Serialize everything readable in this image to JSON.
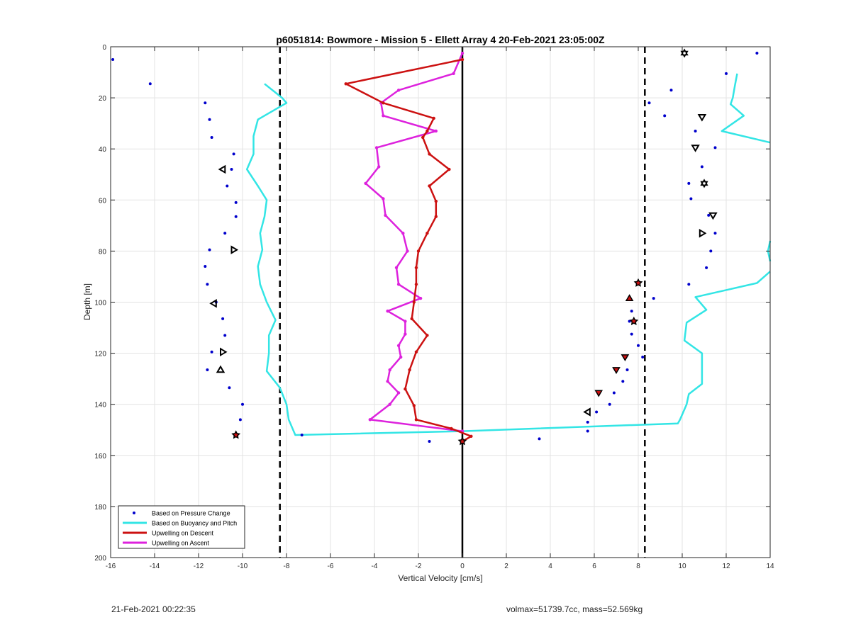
{
  "chart_data": {
    "type": "scatter",
    "title": "p6051814: Bowmore - Mission 5 - Ellett Array 4 20-Feb-2021 23:05:00Z",
    "xlabel": "Vertical Velocity [cm/s]",
    "ylabel": "Depth [m]",
    "xlim": [
      -16,
      14
    ],
    "ylim": [
      0,
      200
    ],
    "y_reversed": true,
    "grid": true,
    "legend_position": "bottom-left",
    "x_ticks": [
      -16,
      -14,
      -12,
      -10,
      -8,
      -6,
      -4,
      -2,
      0,
      2,
      4,
      6,
      8,
      10,
      12,
      14
    ],
    "y_ticks": [
      0,
      20,
      40,
      60,
      80,
      100,
      120,
      140,
      160,
      180,
      200
    ],
    "reference_lines": [
      {
        "x": -8.3,
        "style": "dashed",
        "color": "#000000"
      },
      {
        "x": 8.3,
        "style": "dashed",
        "color": "#000000"
      },
      {
        "x": 0,
        "style": "solid",
        "color": "#000000"
      }
    ],
    "series": [
      {
        "name": "Based on Pressure Change",
        "kind": "points",
        "color": "#0000cc",
        "points": [
          [
            -15.9,
            5
          ],
          [
            -14.2,
            14.5
          ],
          [
            -11.7,
            22
          ],
          [
            -11.5,
            28.5
          ],
          [
            -11.4,
            35.5
          ],
          [
            -10.4,
            42
          ],
          [
            -10.5,
            48
          ],
          [
            -10.7,
            54.5
          ],
          [
            -10.3,
            61
          ],
          [
            -10.3,
            66.5
          ],
          [
            -10.8,
            73
          ],
          [
            -11.5,
            79.5
          ],
          [
            -11.7,
            86
          ],
          [
            -11.6,
            93
          ],
          [
            -11.2,
            100
          ],
          [
            -10.9,
            106.5
          ],
          [
            -10.8,
            113
          ],
          [
            -11.4,
            119.5
          ],
          [
            -11.6,
            126.5
          ],
          [
            -10.6,
            133.5
          ],
          [
            -10.0,
            140
          ],
          [
            -10.1,
            146
          ],
          [
            -10.3,
            152
          ],
          [
            -7.3,
            152
          ],
          [
            -1.5,
            154.5
          ],
          [
            3.5,
            153.5
          ],
          [
            13.4,
            2.5
          ],
          [
            12.0,
            10.5
          ],
          [
            9.5,
            17
          ],
          [
            8.5,
            22
          ],
          [
            9.2,
            27
          ],
          [
            10.6,
            33
          ],
          [
            11.5,
            39.5
          ],
          [
            10.9,
            47
          ],
          [
            10.3,
            53.5
          ],
          [
            10.4,
            59.5
          ],
          [
            11.2,
            66
          ],
          [
            11.5,
            73
          ],
          [
            11.3,
            80
          ],
          [
            11.1,
            86.5
          ],
          [
            10.3,
            93
          ],
          [
            8.7,
            98.5
          ],
          [
            7.7,
            103.5
          ],
          [
            7.6,
            107.5
          ],
          [
            7.7,
            112.5
          ],
          [
            8.0,
            117
          ],
          [
            8.2,
            121.5
          ],
          [
            7.5,
            126.5
          ],
          [
            7.3,
            131
          ],
          [
            6.9,
            135.5
          ],
          [
            6.7,
            140
          ],
          [
            6.1,
            143
          ],
          [
            5.7,
            147
          ],
          [
            5.7,
            150.5
          ]
        ]
      },
      {
        "name": "Based on Buoyancy and Pitch",
        "kind": "line",
        "color": "#33e5e5",
        "segments": [
          [
            [
              -9.0,
              14.5
            ],
            [
              -8.2,
              20
            ],
            [
              -8.0,
              22
            ],
            [
              -8.5,
              24.5
            ],
            [
              -9.3,
              28.5
            ],
            [
              -9.5,
              35
            ],
            [
              -9.5,
              42
            ],
            [
              -9.8,
              48
            ],
            [
              -9.3,
              54.5
            ],
            [
              -8.9,
              60
            ],
            [
              -9.0,
              66.5
            ],
            [
              -9.2,
              73
            ],
            [
              -9.1,
              79.5
            ],
            [
              -9.3,
              86
            ],
            [
              -9.2,
              93
            ],
            [
              -8.9,
              100
            ],
            [
              -8.5,
              107
            ],
            [
              -8.8,
              113
            ],
            [
              -8.8,
              120
            ],
            [
              -8.9,
              127
            ],
            [
              -8.3,
              133.5
            ],
            [
              -8.0,
              140
            ],
            [
              -7.9,
              146
            ],
            [
              -7.6,
              152
            ],
            [
              0.0,
              150.5
            ],
            [
              9.8,
              147.5
            ],
            [
              9.9,
              146
            ],
            [
              10.2,
              140
            ],
            [
              10.3,
              136
            ],
            [
              10.9,
              132
            ],
            [
              10.9,
              127
            ],
            [
              10.9,
              120
            ],
            [
              10.1,
              115
            ],
            [
              10.2,
              108
            ],
            [
              11.1,
              103
            ],
            [
              10.6,
              98
            ],
            [
              13.4,
              92.5
            ],
            [
              14.0,
              88
            ]
          ],
          [
            [
              14.0,
              84
            ],
            [
              13.9,
              80
            ],
            [
              14.0,
              76
            ]
          ],
          [
            [
              12.5,
              10.5
            ],
            [
              12.4,
              15
            ],
            [
              12.3,
              20
            ],
            [
              12.2,
              22.5
            ],
            [
              12.8,
              27
            ],
            [
              11.8,
              33
            ],
            [
              14.0,
              37.5
            ]
          ]
        ]
      },
      {
        "name": "Upwelling on Descent",
        "kind": "line",
        "color": "#cc1111",
        "points": [
          [
            0.0,
            5
          ],
          [
            -5.3,
            14.5
          ],
          [
            -3.6,
            22
          ],
          [
            -1.3,
            28
          ],
          [
            -1.6,
            33
          ],
          [
            -1.8,
            35.5
          ],
          [
            -1.5,
            42
          ],
          [
            -0.6,
            48
          ],
          [
            -1.5,
            54.5
          ],
          [
            -1.2,
            60.5
          ],
          [
            -1.2,
            66.5
          ],
          [
            -1.6,
            73
          ],
          [
            -2.0,
            80
          ],
          [
            -2.1,
            86.5
          ],
          [
            -2.1,
            93
          ],
          [
            -2.2,
            100
          ],
          [
            -2.3,
            106.5
          ],
          [
            -1.6,
            113
          ],
          [
            -2.1,
            119.5
          ],
          [
            -2.4,
            126.5
          ],
          [
            -2.6,
            134
          ],
          [
            -2.2,
            140.5
          ],
          [
            -2.1,
            146
          ],
          [
            -0.5,
            149.5
          ],
          [
            0.4,
            152.5
          ],
          [
            0.0,
            154.5
          ]
        ]
      },
      {
        "name": "Upwelling on Ascent",
        "kind": "line",
        "color": "#dd22dd",
        "points": [
          [
            0.0,
            2.5
          ],
          [
            -0.4,
            10.5
          ],
          [
            -2.9,
            17
          ],
          [
            -3.7,
            22
          ],
          [
            -3.6,
            27
          ],
          [
            -1.2,
            33
          ],
          [
            -3.9,
            39.5
          ],
          [
            -3.8,
            47
          ],
          [
            -4.4,
            53.5
          ],
          [
            -3.6,
            59.5
          ],
          [
            -3.5,
            66
          ],
          [
            -2.7,
            73
          ],
          [
            -2.5,
            80
          ],
          [
            -3.0,
            86.5
          ],
          [
            -2.9,
            93
          ],
          [
            -1.9,
            98.5
          ],
          [
            -3.4,
            103.5
          ],
          [
            -2.6,
            107.5
          ],
          [
            -2.6,
            112.5
          ],
          [
            -2.9,
            117
          ],
          [
            -2.8,
            121.5
          ],
          [
            -3.3,
            126.5
          ],
          [
            -3.4,
            131
          ],
          [
            -2.9,
            135.5
          ],
          [
            -3.3,
            140
          ],
          [
            -4.2,
            146
          ],
          [
            0.0,
            150.5
          ]
        ]
      }
    ],
    "markers": [
      {
        "shape": "triangle-left",
        "points": [
          [
            -10.9,
            48
          ],
          [
            -11.3,
            100.5
          ],
          [
            5.7,
            143
          ]
        ]
      },
      {
        "shape": "triangle-right",
        "points": [
          [
            -10.4,
            79.5
          ],
          [
            -10.9,
            119.5
          ],
          [
            10.9,
            73
          ]
        ]
      },
      {
        "shape": "triangle-up",
        "points": [
          [
            -11.0,
            126.5
          ]
        ]
      },
      {
        "shape": "triangle-down",
        "points": [
          [
            10.9,
            27.5
          ],
          [
            10.6,
            39.5
          ],
          [
            11.4,
            66
          ]
        ]
      },
      {
        "shape": "hexagram",
        "points": [
          [
            10.1,
            2.5
          ],
          [
            11.0,
            53.5
          ]
        ]
      },
      {
        "shape": "filled-star",
        "points": [
          [
            -10.3,
            152
          ],
          [
            8.0,
            92.5
          ],
          [
            7.8,
            107.5
          ],
          [
            0.0,
            154.5
          ]
        ]
      },
      {
        "shape": "filled-triangle-up",
        "points": [
          [
            7.6,
            98.5
          ]
        ]
      },
      {
        "shape": "filled-triangle-down",
        "points": [
          [
            7.4,
            121.5
          ],
          [
            7.0,
            126.5
          ],
          [
            6.2,
            135.5
          ]
        ]
      }
    ]
  },
  "footer": {
    "timestamp": "21-Feb-2021 00:22:35",
    "info": "volmax=51739.7cc, mass=52.569kg"
  }
}
